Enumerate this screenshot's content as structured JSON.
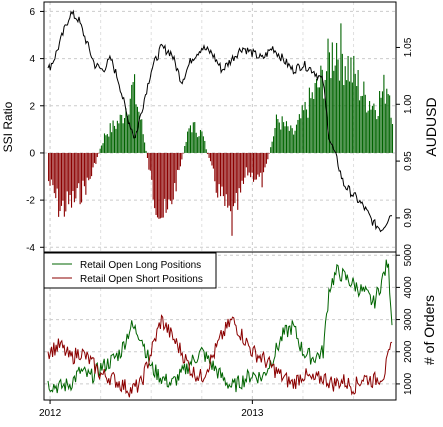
{
  "chart_data": [
    {
      "type": "bar+line",
      "panel": "top",
      "ylabel": "SSI Ratio",
      "ylim": [
        -4.2,
        6.4
      ],
      "yticks": [
        "-4",
        "-2",
        "0",
        "2",
        "4",
        "6"
      ],
      "y2label": "AUDUSD",
      "y2lim": [
        0.87,
        1.09
      ],
      "y2ticks": [
        "0.90",
        "0.95",
        "1.00",
        "1.05"
      ],
      "colors": {
        "positive": "#006400",
        "negative": "#8b0000",
        "line": "#000000"
      },
      "ssi_keypoints": [
        {
          "x": 2011.99,
          "y": -1.5
        },
        {
          "x": 2012.05,
          "y": -3.0
        },
        {
          "x": 2012.12,
          "y": -2.5
        },
        {
          "x": 2012.19,
          "y": -1.5
        },
        {
          "x": 2012.27,
          "y": 1.0
        },
        {
          "x": 2012.35,
          "y": 1.8
        },
        {
          "x": 2012.41,
          "y": 3.5
        },
        {
          "x": 2012.45,
          "y": 1.5
        },
        {
          "x": 2012.51,
          "y": -2.3
        },
        {
          "x": 2012.57,
          "y": -3.6
        },
        {
          "x": 2012.63,
          "y": -1.2
        },
        {
          "x": 2012.69,
          "y": 1.5
        },
        {
          "x": 2012.75,
          "y": 1.0
        },
        {
          "x": 2012.82,
          "y": -1.8
        },
        {
          "x": 2012.9,
          "y": -3.8
        },
        {
          "x": 2012.97,
          "y": -1.0
        },
        {
          "x": 2013.05,
          "y": -1.5
        },
        {
          "x": 2013.12,
          "y": 1.8
        },
        {
          "x": 2013.2,
          "y": 1.0
        },
        {
          "x": 2013.27,
          "y": 2.5
        },
        {
          "x": 2013.35,
          "y": 4.0
        },
        {
          "x": 2013.41,
          "y": 5.8
        },
        {
          "x": 2013.48,
          "y": 4.5
        },
        {
          "x": 2013.55,
          "y": 3.0
        },
        {
          "x": 2013.61,
          "y": 2.5
        },
        {
          "x": 2013.67,
          "y": 3.8
        },
        {
          "x": 2013.69,
          "y": 2.0
        }
      ],
      "audusd_keypoints": [
        {
          "x": 2011.99,
          "y": 1.03
        },
        {
          "x": 2012.02,
          "y": 1.04
        },
        {
          "x": 2012.06,
          "y": 1.06
        },
        {
          "x": 2012.1,
          "y": 1.08
        },
        {
          "x": 2012.14,
          "y": 1.075
        },
        {
          "x": 2012.18,
          "y": 1.055
        },
        {
          "x": 2012.22,
          "y": 1.035
        },
        {
          "x": 2012.26,
          "y": 1.03
        },
        {
          "x": 2012.3,
          "y": 1.04
        },
        {
          "x": 2012.34,
          "y": 1.02
        },
        {
          "x": 2012.38,
          "y": 0.99
        },
        {
          "x": 2012.42,
          "y": 0.97
        },
        {
          "x": 2012.46,
          "y": 1.0
        },
        {
          "x": 2012.5,
          "y": 1.03
        },
        {
          "x": 2012.55,
          "y": 1.05
        },
        {
          "x": 2012.6,
          "y": 1.045
        },
        {
          "x": 2012.65,
          "y": 1.02
        },
        {
          "x": 2012.7,
          "y": 1.04
        },
        {
          "x": 2012.75,
          "y": 1.05
        },
        {
          "x": 2012.8,
          "y": 1.045
        },
        {
          "x": 2012.85,
          "y": 1.03
        },
        {
          "x": 2012.9,
          "y": 1.04
        },
        {
          "x": 2012.95,
          "y": 1.05
        },
        {
          "x": 2013.0,
          "y": 1.045
        },
        {
          "x": 2013.05,
          "y": 1.04
        },
        {
          "x": 2013.1,
          "y": 1.05
        },
        {
          "x": 2013.15,
          "y": 1.04
        },
        {
          "x": 2013.2,
          "y": 1.03
        },
        {
          "x": 2013.25,
          "y": 1.035
        },
        {
          "x": 2013.3,
          "y": 1.03
        },
        {
          "x": 2013.35,
          "y": 1.02
        },
        {
          "x": 2013.38,
          "y": 0.97
        },
        {
          "x": 2013.42,
          "y": 0.95
        },
        {
          "x": 2013.45,
          "y": 0.93
        },
        {
          "x": 2013.5,
          "y": 0.92
        },
        {
          "x": 2013.55,
          "y": 0.91
        },
        {
          "x": 2013.6,
          "y": 0.895
        },
        {
          "x": 2013.64,
          "y": 0.89
        },
        {
          "x": 2013.69,
          "y": 0.905
        }
      ]
    },
    {
      "type": "line",
      "panel": "bottom",
      "ylabel": "# of Orders",
      "ylim": [
        500,
        5100
      ],
      "yticks": [
        "1000",
        "2000",
        "3000",
        "4000",
        "5000"
      ],
      "xlim": [
        2011.97,
        2013.71
      ],
      "xticks": [
        {
          "x": 2012.0,
          "label": "2012"
        },
        {
          "x": 2013.0,
          "label": "2013"
        }
      ],
      "legend": {
        "position": "top-left",
        "entries": [
          {
            "label": "Retail Open Long Positions",
            "color": "#006400"
          },
          {
            "label": "Retail Open Short Positions",
            "color": "#8b0000"
          }
        ]
      },
      "series": [
        {
          "name": "Retail Open Long Positions",
          "color": "#006400",
          "values": [
            {
              "x": 2011.99,
              "y": 1000
            },
            {
              "x": 2012.05,
              "y": 900
            },
            {
              "x": 2012.1,
              "y": 1000
            },
            {
              "x": 2012.15,
              "y": 1400
            },
            {
              "x": 2012.2,
              "y": 1200
            },
            {
              "x": 2012.25,
              "y": 1500
            },
            {
              "x": 2012.3,
              "y": 1700
            },
            {
              "x": 2012.35,
              "y": 2000
            },
            {
              "x": 2012.4,
              "y": 2800
            },
            {
              "x": 2012.45,
              "y": 2500
            },
            {
              "x": 2012.5,
              "y": 1500
            },
            {
              "x": 2012.55,
              "y": 1200
            },
            {
              "x": 2012.6,
              "y": 1000
            },
            {
              "x": 2012.65,
              "y": 1300
            },
            {
              "x": 2012.7,
              "y": 1700
            },
            {
              "x": 2012.75,
              "y": 2000
            },
            {
              "x": 2012.8,
              "y": 1600
            },
            {
              "x": 2012.85,
              "y": 1200
            },
            {
              "x": 2012.9,
              "y": 900
            },
            {
              "x": 2012.95,
              "y": 1100
            },
            {
              "x": 2013.0,
              "y": 1300
            },
            {
              "x": 2013.05,
              "y": 1200
            },
            {
              "x": 2013.1,
              "y": 1800
            },
            {
              "x": 2013.15,
              "y": 2500
            },
            {
              "x": 2013.2,
              "y": 2800
            },
            {
              "x": 2013.25,
              "y": 2000
            },
            {
              "x": 2013.3,
              "y": 1800
            },
            {
              "x": 2013.35,
              "y": 2000
            },
            {
              "x": 2013.38,
              "y": 4000
            },
            {
              "x": 2013.42,
              "y": 4500
            },
            {
              "x": 2013.48,
              "y": 4200
            },
            {
              "x": 2013.52,
              "y": 4000
            },
            {
              "x": 2013.56,
              "y": 3800
            },
            {
              "x": 2013.6,
              "y": 3500
            },
            {
              "x": 2013.64,
              "y": 4200
            },
            {
              "x": 2013.67,
              "y": 4800
            },
            {
              "x": 2013.69,
              "y": 3000
            }
          ]
        },
        {
          "name": "Retail Open Short Positions",
          "color": "#8b0000",
          "values": [
            {
              "x": 2011.99,
              "y": 2000
            },
            {
              "x": 2012.05,
              "y": 2200
            },
            {
              "x": 2012.1,
              "y": 1800
            },
            {
              "x": 2012.15,
              "y": 2000
            },
            {
              "x": 2012.2,
              "y": 1700
            },
            {
              "x": 2012.25,
              "y": 1300
            },
            {
              "x": 2012.3,
              "y": 1200
            },
            {
              "x": 2012.35,
              "y": 1000
            },
            {
              "x": 2012.4,
              "y": 800
            },
            {
              "x": 2012.45,
              "y": 1000
            },
            {
              "x": 2012.5,
              "y": 2000
            },
            {
              "x": 2012.55,
              "y": 3000
            },
            {
              "x": 2012.6,
              "y": 2500
            },
            {
              "x": 2012.65,
              "y": 2000
            },
            {
              "x": 2012.7,
              "y": 1400
            },
            {
              "x": 2012.75,
              "y": 1200
            },
            {
              "x": 2012.8,
              "y": 1800
            },
            {
              "x": 2012.85,
              "y": 2500
            },
            {
              "x": 2012.9,
              "y": 3000
            },
            {
              "x": 2012.95,
              "y": 2500
            },
            {
              "x": 2013.0,
              "y": 2000
            },
            {
              "x": 2013.05,
              "y": 1800
            },
            {
              "x": 2013.1,
              "y": 1500
            },
            {
              "x": 2013.15,
              "y": 1200
            },
            {
              "x": 2013.2,
              "y": 1000
            },
            {
              "x": 2013.25,
              "y": 1300
            },
            {
              "x": 2013.3,
              "y": 1100
            },
            {
              "x": 2013.35,
              "y": 1200
            },
            {
              "x": 2013.4,
              "y": 1000
            },
            {
              "x": 2013.45,
              "y": 1100
            },
            {
              "x": 2013.5,
              "y": 900
            },
            {
              "x": 2013.55,
              "y": 1200
            },
            {
              "x": 2013.6,
              "y": 1100
            },
            {
              "x": 2013.65,
              "y": 1300
            },
            {
              "x": 2013.69,
              "y": 2200
            }
          ]
        }
      ]
    }
  ]
}
